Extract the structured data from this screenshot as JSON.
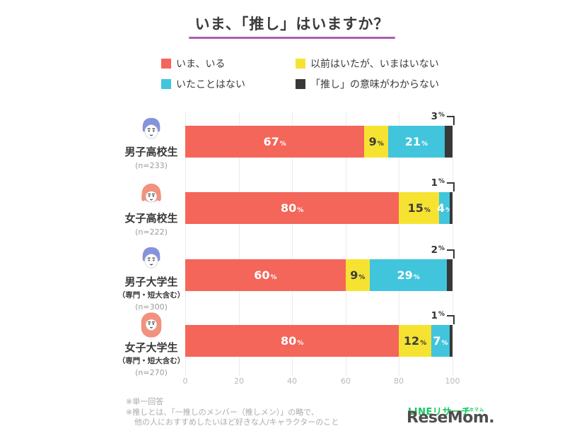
{
  "title": "いま、「推し」はいますか？",
  "accent": "#ad5cb5",
  "unit": "%",
  "legend": [
    {
      "label": "いま、いる",
      "color": "#f4655a"
    },
    {
      "label": "以前はいたが、いまはいない",
      "color": "#f6e331"
    },
    {
      "label": "いたことはない",
      "color": "#41c5dd"
    },
    {
      "label": "「推し」の意味がわからない",
      "color": "#383838"
    }
  ],
  "rows": [
    {
      "label": "男子高校生",
      "n": "(n=233)",
      "values": [
        67,
        9,
        21,
        3
      ]
    },
    {
      "label": "女子高校生",
      "n": "(n=222)",
      "values": [
        80,
        15,
        4,
        1
      ]
    },
    {
      "label": "男子大学生",
      "sub": "（専門・短大含む）",
      "n": "(n=300)",
      "values": [
        60,
        9,
        29,
        2
      ]
    },
    {
      "label": "女子大学生",
      "sub": "（専門・短大含む）",
      "n": "(n=270)",
      "values": [
        80,
        12,
        7,
        1
      ]
    }
  ],
  "axis": {
    "ticks": [
      "0",
      "20",
      "40",
      "60",
      "80",
      "100"
    ]
  },
  "footnotes": [
    "※単一回答",
    "※推しとは、「一推しのメンバー（推しメン）」の略で、",
    "他の人におすすめしたいほど好きな人/キャラクターのこと"
  ],
  "logo": {
    "overlay": "LINEリサーチ",
    "kana": "リセマム",
    "text": "ReseMom."
  },
  "chart_data": {
    "type": "bar",
    "stacked": true,
    "orientation": "horizontal",
    "title": "いま、「推し」はいますか？",
    "categories": [
      "男子高校生 (n=233)",
      "女子高校生 (n=222)",
      "男子大学生（専門・短大含む）(n=300)",
      "女子大学生（専門・短大含む）(n=270)"
    ],
    "series": [
      {
        "name": "いま、いる",
        "color": "#f4655a",
        "values": [
          67,
          80,
          60,
          80
        ]
      },
      {
        "name": "以前はいたが、いまはいない",
        "color": "#f6e331",
        "values": [
          9,
          15,
          9,
          12
        ]
      },
      {
        "name": "いたことはない",
        "color": "#41c5dd",
        "values": [
          21,
          4,
          29,
          7
        ]
      },
      {
        "name": "「推し」の意味がわからない",
        "color": "#383838",
        "values": [
          3,
          1,
          2,
          1
        ]
      }
    ],
    "xlabel": "",
    "ylabel": "",
    "xlim": [
      0,
      100
    ],
    "xticks": [
      0,
      20,
      40,
      60,
      80,
      100
    ],
    "grid": true,
    "legend_position": "top"
  }
}
